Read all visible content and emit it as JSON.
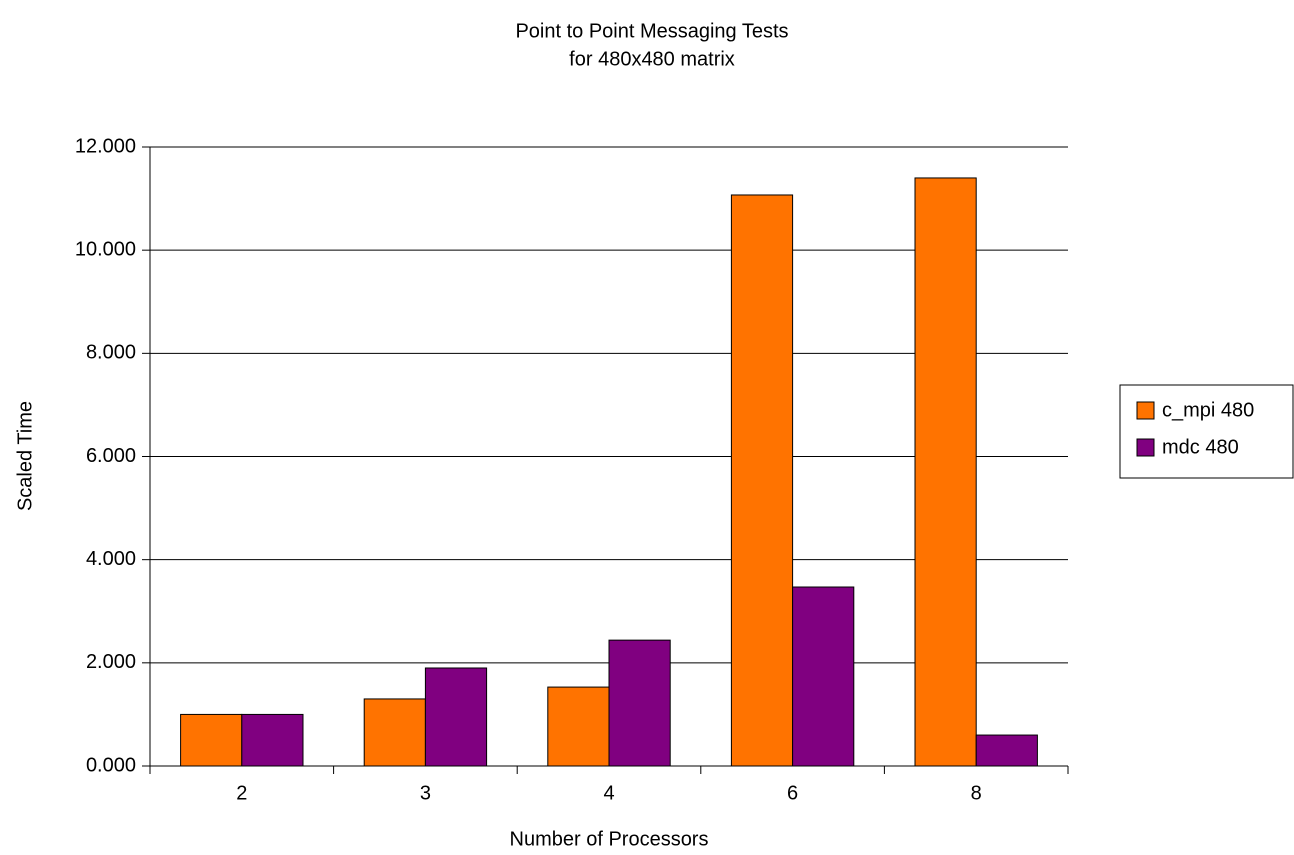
{
  "chart_data": {
    "type": "bar",
    "title": "Point to Point Messaging Tests",
    "subtitle": "for 480x480 matrix",
    "x_label": "Number of Processors",
    "y_label": "Scaled Time",
    "categories": [
      "2",
      "3",
      "4",
      "6",
      "8"
    ],
    "series": [
      {
        "name": "c_mpi 480",
        "color": "#ff7300",
        "values": [
          1.0,
          1.3,
          1.53,
          11.07,
          11.4
        ]
      },
      {
        "name": "mdc 480",
        "color": "#800080",
        "values": [
          1.0,
          1.9,
          2.44,
          3.47,
          0.6
        ]
      }
    ],
    "ylim": [
      0,
      12
    ],
    "yticks": [
      {
        "value": 0,
        "label": "0.000"
      },
      {
        "value": 2,
        "label": "2.000"
      },
      {
        "value": 4,
        "label": "4.000"
      },
      {
        "value": 6,
        "label": "6.000"
      },
      {
        "value": 8,
        "label": "8.000"
      },
      {
        "value": 10,
        "label": "10.000"
      },
      {
        "value": 12,
        "label": "12.000"
      }
    ],
    "grid": true,
    "legend": "right"
  }
}
